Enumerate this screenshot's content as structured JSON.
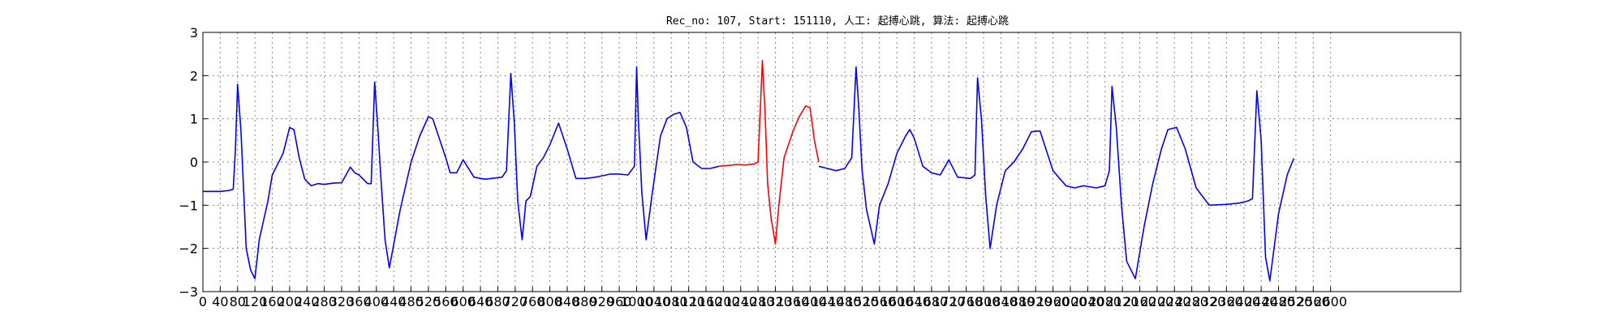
{
  "chart_data": {
    "type": "line",
    "title": "Rec_no: 107, Start: 151110, 人工: 起搏心跳, 算法: 起搏心跳",
    "xlabel": "",
    "ylabel": "",
    "xlim": [
      0,
      2900
    ],
    "ylim": [
      -3,
      3
    ],
    "grid": true,
    "y_ticks": [
      -3,
      -2,
      -1,
      0,
      1,
      2,
      3
    ],
    "y_tick_labels": [
      "−3",
      "−2",
      "−1",
      "0",
      "1",
      "2",
      "3"
    ],
    "x_ticks": [
      0,
      40,
      80,
      120,
      160,
      200,
      240,
      280,
      320,
      360,
      400,
      440,
      480,
      520,
      560,
      600,
      640,
      680,
      720,
      760,
      800,
      840,
      880,
      920,
      960,
      1000,
      1040,
      1080,
      1120,
      1160,
      1200,
      1240,
      1280,
      1320,
      1360,
      1400,
      1440,
      1480,
      1520,
      1560,
      1600,
      1640,
      1680,
      1720,
      1760,
      1800,
      1840,
      1880,
      1920,
      1960,
      2000,
      2040,
      2080,
      2120,
      2160,
      2200,
      2240,
      2280,
      2320,
      2360,
      2400,
      2440,
      2480,
      2520,
      2560,
      2600
    ],
    "colors": {
      "normal": "#0000ff",
      "highlight": "#ff0000"
    },
    "series": [
      {
        "color": "#0000ff",
        "x": [
          0,
          40,
          60,
          70,
          75,
          80,
          88,
          100,
          110,
          120,
          130,
          150,
          160,
          185,
          200,
          210,
          222,
          235,
          250,
          265,
          280,
          300,
          320,
          340,
          350,
          360,
          380,
          388,
          396,
          404,
          410,
          420,
          430,
          455,
          480,
          500,
          520,
          530,
          560,
          570,
          585,
          600,
          625,
          650,
          690,
          700,
          710,
          718,
          726,
          736,
          745,
          755,
          770,
          785,
          800,
          820,
          840,
          860,
          880,
          900,
          920,
          940,
          960,
          980,
          995,
          1000,
          1004,
          1012,
          1022,
          1035,
          1045,
          1055,
          1070,
          1085,
          1100,
          1115,
          1130,
          1150,
          1170,
          1190
        ],
        "y": [
          -0.68,
          -0.68,
          -0.66,
          -0.63,
          0.3,
          1.8,
          0.7,
          -2.0,
          -2.5,
          -2.7,
          -1.8,
          -0.9,
          -0.3,
          0.2,
          0.8,
          0.75,
          0.1,
          -0.4,
          -0.55,
          -0.5,
          -0.52,
          -0.49,
          -0.48,
          -0.12,
          -0.25,
          -0.3,
          -0.5,
          -0.5,
          1.85,
          0.7,
          -0.3,
          -1.8,
          -2.45,
          -1.1,
          0.0,
          0.6,
          1.05,
          1.0,
          0.1,
          -0.25,
          -0.25,
          0.05,
          -0.35,
          -0.4,
          -0.35,
          -0.2,
          2.05,
          0.9,
          -0.9,
          -1.8,
          -0.9,
          -0.8,
          -0.1,
          0.1,
          0.4,
          0.9,
          0.3,
          -0.38,
          -0.38,
          -0.36,
          -0.32,
          -0.28,
          -0.28,
          -0.3,
          -0.1,
          2.2,
          1.0,
          -0.7,
          -1.8,
          -0.8,
          -0.1,
          0.6,
          1.0,
          1.1,
          1.15,
          0.8,
          0.0,
          -0.15,
          -0.15,
          -0.1
        ]
      },
      {
        "color": "#ff0000",
        "x": [
          1190,
          1210,
          1230,
          1250,
          1270,
          1280,
          1290,
          1296,
          1302,
          1310,
          1320,
          1328,
          1340,
          1350,
          1360,
          1375,
          1390,
          1400,
          1410,
          1420
        ],
        "y": [
          -0.1,
          -0.08,
          -0.06,
          -0.07,
          -0.05,
          0.0,
          2.35,
          1.2,
          -0.5,
          -1.3,
          -1.9,
          -1.0,
          0.1,
          0.4,
          0.7,
          1.05,
          1.3,
          1.25,
          0.5,
          0.0
        ]
      },
      {
        "color": "#0000ff",
        "x": [
          1420,
          1440,
          1460,
          1480,
          1496,
          1506,
          1512,
          1520,
          1530,
          1548,
          1560,
          1580,
          1600,
          1620,
          1630,
          1640,
          1660,
          1680,
          1700,
          1720,
          1740,
          1770,
          1780,
          1786,
          1795,
          1805,
          1815,
          1830,
          1850,
          1870,
          1890,
          1910,
          1930,
          1960,
          1990,
          2010,
          2030,
          2060,
          2080,
          2090,
          2096,
          2106,
          2118,
          2130,
          2150,
          2170,
          2190,
          2210,
          2225,
          2245,
          2265,
          2290,
          2320,
          2360,
          2390,
          2410,
          2420,
          2430,
          2440,
          2450,
          2460,
          2480,
          2500,
          2515
        ],
        "y": [
          -0.1,
          -0.15,
          -0.2,
          -0.15,
          0.1,
          2.2,
          1.3,
          -0.2,
          -1.1,
          -1.9,
          -1.0,
          -0.5,
          0.2,
          0.6,
          0.75,
          0.55,
          -0.1,
          -0.25,
          -0.3,
          0.05,
          -0.35,
          -0.38,
          -0.3,
          1.95,
          1.0,
          -0.8,
          -2.0,
          -1.0,
          -0.2,
          0.0,
          0.3,
          0.7,
          0.72,
          -0.2,
          -0.55,
          -0.6,
          -0.55,
          -0.6,
          -0.55,
          -0.2,
          1.75,
          0.8,
          -1.0,
          -2.3,
          -2.7,
          -1.5,
          -0.5,
          0.3,
          0.75,
          0.8,
          0.3,
          -0.6,
          -1.0,
          -0.98,
          -0.95,
          -0.9,
          -0.85,
          1.65,
          0.5,
          -2.2,
          -2.75,
          -1.2,
          -0.3,
          0.08
        ]
      }
    ]
  }
}
